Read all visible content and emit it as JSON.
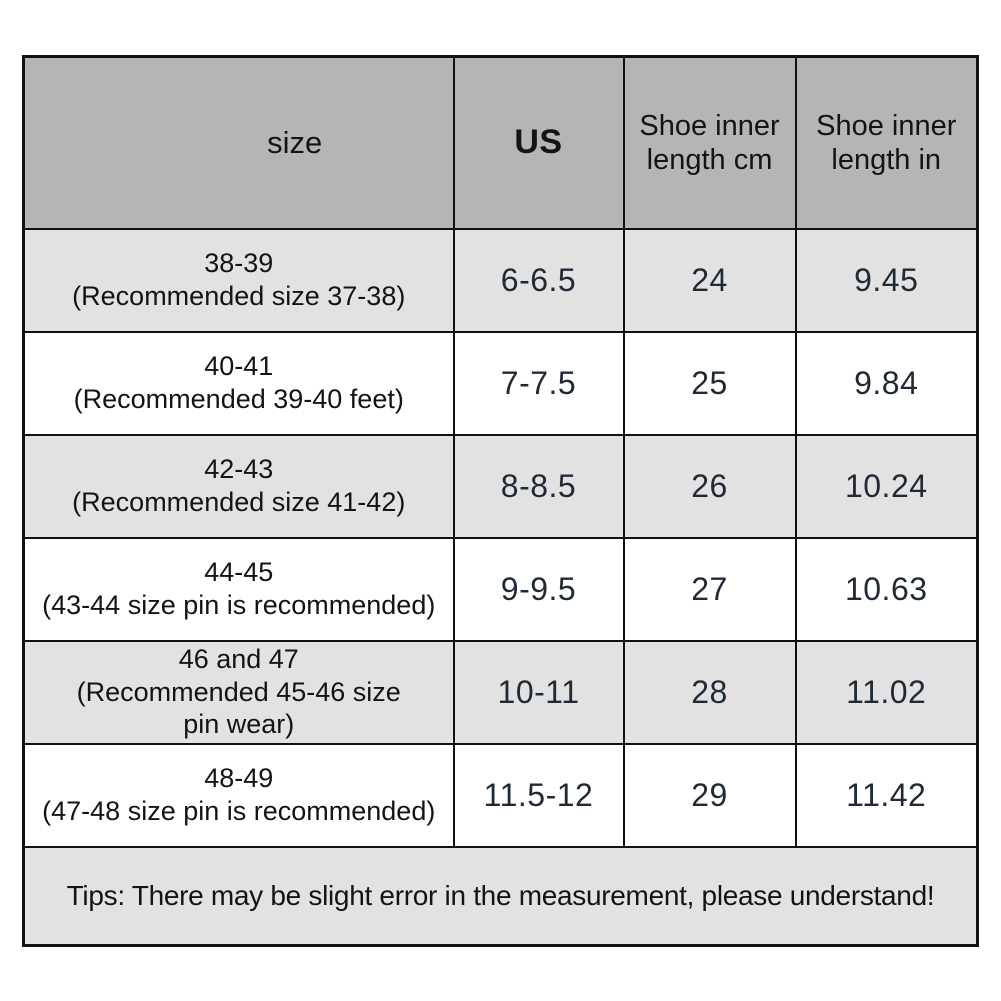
{
  "chart_data": {
    "type": "table",
    "columns": [
      "size",
      "US",
      "Shoe inner length cm",
      "Shoe inner length in"
    ],
    "rows": [
      [
        "38-39 (Recommended size 37-38)",
        "6-6.5",
        "24",
        "9.45"
      ],
      [
        "40-41 (Recommended 39-40 feet)",
        "7-7.5",
        "25",
        "9.84"
      ],
      [
        "42-43 (Recommended size 41-42)",
        "8-8.5",
        "26",
        "10.24"
      ],
      [
        "44-45 (43-44 size pin is recommended)",
        "9-9.5",
        "27",
        "10.63"
      ],
      [
        "46 and 47 (Recommended 45-46 size pin wear)",
        "10-11",
        "28",
        "11.02"
      ],
      [
        "48-49 (47-48 size pin is recommended)",
        "11.5-12",
        "29",
        "11.42"
      ]
    ],
    "footer_note": "Tips: There may be slight error in the measurement, please understand!"
  },
  "table": {
    "header": {
      "size_label": "size",
      "us_label": "US",
      "cm_label": "Shoe inner length cm",
      "in_label": "Shoe inner length in"
    },
    "rows": [
      {
        "size": "38-39\n(Recommended size 37-38)",
        "us": "6-6.5",
        "cm": "24",
        "in": "9.45"
      },
      {
        "size": "40-41\n(Recommended 39-40 feet)",
        "us": "7-7.5",
        "cm": "25",
        "in": "9.84"
      },
      {
        "size": "42-43\n(Recommended size 41-42)",
        "us": "8-8.5",
        "cm": "26",
        "in": "10.24"
      },
      {
        "size": "44-45\n(43-44 size pin is recommended)",
        "us": "9-9.5",
        "cm": "27",
        "in": "10.63"
      },
      {
        "size": "46 and 47\n(Recommended 45-46 size\npin wear)",
        "us": "10-11",
        "cm": "28",
        "in": "11.02"
      },
      {
        "size": "48-49\n(47-48 size pin is recommended)",
        "us": "11.5-12",
        "cm": "29",
        "in": "11.42"
      }
    ],
    "tips": "Tips: There may be slight error in the measurement, please understand!"
  },
  "colors": {
    "header_bg": "#b5b5b5",
    "row_bg": "#ffffff",
    "row_alt_bg": "#e2e2e2",
    "tips_bg": "#e2e2e2",
    "border": "#111111",
    "text": "#141414",
    "number_text": "#1f2a36"
  }
}
